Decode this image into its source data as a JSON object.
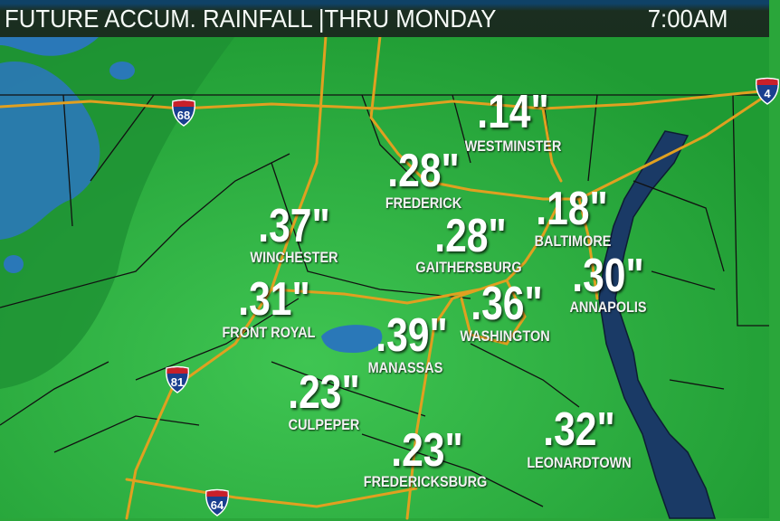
{
  "header": {
    "title": "FUTURE ACCUM. RAINFALL |THRU MONDAY",
    "time": "7:00AM"
  },
  "colors": {
    "land_light": "#3cc04e",
    "land_dark": "#1f9a32",
    "heavy_rain": "#2a78b8",
    "water": "#1a3a66",
    "roads": "#e0a020",
    "header_bg": "#1a2a1f"
  },
  "locations": [
    {
      "city": "WESTMINSTER",
      "amount": ".14\""
    },
    {
      "city": "FREDERICK",
      "amount": ".28\""
    },
    {
      "city": "WINCHESTER",
      "amount": ".37\""
    },
    {
      "city": "GAITHERSBURG",
      "amount": ".28\""
    },
    {
      "city": "BALTIMORE",
      "amount": ".18\""
    },
    {
      "city": "ANNAPOLIS",
      "amount": ".30\""
    },
    {
      "city": "WASHINGTON",
      "amount": ".36\""
    },
    {
      "city": "FRONT ROYAL",
      "amount": ".31\""
    },
    {
      "city": "MANASSAS",
      "amount": ".39\""
    },
    {
      "city": "CULPEPER",
      "amount": ".23\""
    },
    {
      "city": "FREDERICKSBURG",
      "amount": ".23\""
    },
    {
      "city": "LEONARDTOWN",
      "amount": ".32\""
    }
  ],
  "interstates": [
    {
      "number": "68",
      "icon": "interstate-shield-icon"
    },
    {
      "number": "81",
      "icon": "interstate-shield-icon"
    },
    {
      "number": "64",
      "icon": "interstate-shield-icon"
    },
    {
      "number": "4",
      "icon": "interstate-shield-icon"
    }
  ]
}
